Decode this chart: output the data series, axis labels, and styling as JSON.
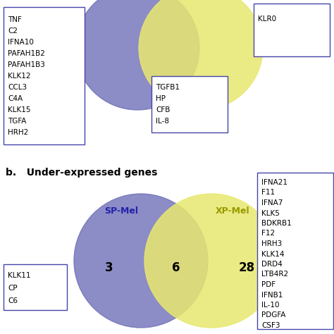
{
  "title_b": "b.   Under-expressed genes",
  "title_b_fontsize": 10,
  "sp_mel_label": "SP-Mel",
  "xp_mel_label": "XP-Mel",
  "sp_mel_color": "#7070b8",
  "xp_mel_color": "#e8e870",
  "sp_mel_alpha": 0.8,
  "xp_mel_alpha": 0.85,
  "sp_mel_count": "3",
  "overlap_count": "6",
  "xp_mel_count": "28",
  "sp_mel_genes_b": [
    "KLK11",
    "CP",
    "C6"
  ],
  "overlap_genes_a": [
    "TGFB1",
    "HP",
    "CFB",
    "IL-8"
  ],
  "xp_mel_genes_b": [
    "IFNA21",
    "F11",
    "IFNA7",
    "KLK5",
    "BDKRB1",
    "F12",
    "HRH3",
    "KLK14",
    "DRD4",
    "LTB4R2",
    "PDF",
    "IFNB1",
    "IL-10",
    "PDGFA",
    "CSF3"
  ],
  "sp_mel_genes_a": [
    "TNF",
    "C2",
    "IFNA10",
    "PAFAH1B2",
    "PAFAH1B3",
    "KLK12",
    "CCL3",
    "C4A",
    "KLK15",
    "TGFA",
    "HRH2"
  ],
  "top_right_genes_a": [
    "KLR0"
  ],
  "background_color": "#ffffff",
  "box_edge_color": "#4444aa",
  "label_color_sp": "#2222aa",
  "label_color_xp": "#999900",
  "count_fontsize": 12,
  "label_fontsize": 9,
  "gene_fontsize": 7.5,
  "fig_width": 4.74,
  "fig_height": 4.74,
  "dpi": 100
}
